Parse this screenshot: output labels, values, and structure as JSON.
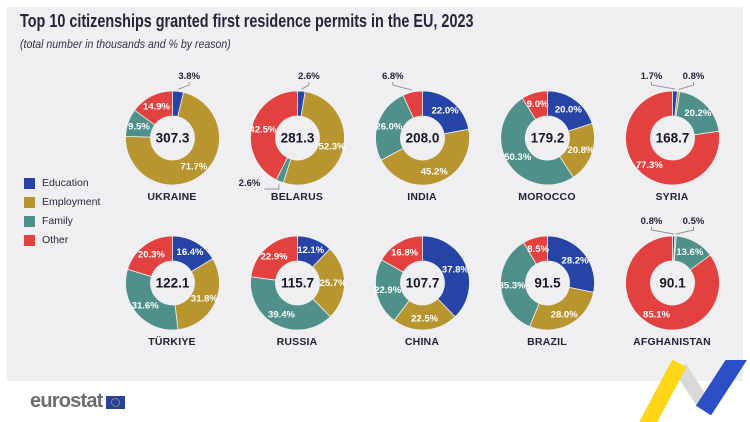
{
  "header": {
    "title": "Top 10 citizenships granted first residence permits in the EU, 2023",
    "subtitle": "(total number in thousands and % by reason)"
  },
  "legend": [
    {
      "label": "Education",
      "color": "#2644a5"
    },
    {
      "label": "Employment",
      "color": "#b9952f"
    },
    {
      "label": "Family",
      "color": "#4f918a"
    },
    {
      "label": "Other",
      "color": "#e2413f"
    }
  ],
  "footer": {
    "brand": "eurostat"
  },
  "chart_data": {
    "type": "pie",
    "subtype": "donut",
    "unit": "total number in thousands, slices are % by reason",
    "reasons": [
      "Education",
      "Employment",
      "Family",
      "Other"
    ],
    "colors": [
      "#2644a5",
      "#b9952f",
      "#4f918a",
      "#e2413f"
    ],
    "legend_position": "left",
    "countries": [
      {
        "name": "UKRAINE",
        "total": "307.3",
        "values": [
          3.8,
          71.7,
          9.5,
          14.9
        ],
        "outside": {
          "0": "top"
        }
      },
      {
        "name": "BELARUS",
        "total": "281.3",
        "values": [
          2.6,
          52.3,
          2.6,
          42.5
        ],
        "outside": {
          "0": "top",
          "2": "left"
        }
      },
      {
        "name": "INDIA",
        "total": "208.0",
        "values": [
          22.0,
          45.2,
          26.0,
          6.8
        ],
        "outside": {
          "3": "top"
        }
      },
      {
        "name": "MOROCCO",
        "total": "179.2",
        "values": [
          20.0,
          20.8,
          50.3,
          9.0
        ],
        "outside": {}
      },
      {
        "name": "SYRIA",
        "total": "168.7",
        "values": [
          1.7,
          0.8,
          20.2,
          77.3
        ],
        "outside": {
          "0": "top",
          "1": "top"
        }
      },
      {
        "name": "TÜRKIYE",
        "total": "122.1",
        "values": [
          16.4,
          31.8,
          31.6,
          20.3
        ],
        "outside": {}
      },
      {
        "name": "RUSSIA",
        "total": "115.7",
        "values": [
          12.1,
          25.7,
          39.4,
          22.9
        ],
        "outside": {}
      },
      {
        "name": "CHINA",
        "total": "107.7",
        "values": [
          37.8,
          22.5,
          22.9,
          16.8
        ],
        "outside": {}
      },
      {
        "name": "BRAZIL",
        "total": "91.5",
        "values": [
          28.2,
          28.0,
          35.3,
          8.5
        ],
        "outside": {}
      },
      {
        "name": "AFGHANISTAN",
        "total": "90.1",
        "values": [
          0.8,
          0.5,
          13.6,
          85.1
        ],
        "outside": {
          "0": "top",
          "1": "top"
        }
      }
    ]
  }
}
